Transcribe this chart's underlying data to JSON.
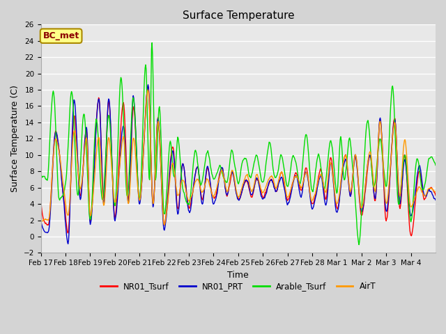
{
  "title": "Surface Temperature",
  "xlabel": "Time",
  "ylabel": "Surface Temperature (C)",
  "ylim": [
    -2,
    26
  ],
  "yticks": [
    -2,
    0,
    2,
    4,
    6,
    8,
    10,
    12,
    14,
    16,
    18,
    20,
    22,
    24,
    26
  ],
  "plot_bg_color": "#e8e8e8",
  "fig_bg_color": "#d4d4d4",
  "annotation_text": "BC_met",
  "annotation_color": "#8B0000",
  "annotation_bg": "#ffff88",
  "annotation_edge": "#aa8800",
  "line_colors": {
    "NR01_Tsurf": "#ff0000",
    "NR01_PRT": "#0000cc",
    "Arable_Tsurf": "#00dd00",
    "AirT": "#ff9900"
  },
  "legend_labels": [
    "NR01_Tsurf",
    "NR01_PRT",
    "Arable_Tsurf",
    "AirT"
  ],
  "date_labels": [
    "Feb 17",
    "Feb 18",
    "Feb 19",
    "Feb 20",
    "Feb 21",
    "Feb 22",
    "Feb 23",
    "Feb 24",
    "Feb 25",
    "Feb 26",
    "Feb 27",
    "Feb 28",
    "Mar 1",
    "Mar 2",
    "Mar 3",
    "Mar 4"
  ],
  "n_points": 800
}
